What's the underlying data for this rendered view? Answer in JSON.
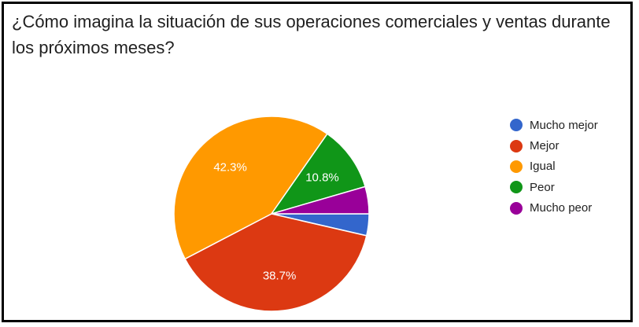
{
  "title": "¿Cómo imagina la situación de sus operaciones comerciales y ventas durante los próximos meses?",
  "chart_data": {
    "type": "pie",
    "title": "¿Cómo imagina la situación de sus operaciones comerciales y ventas durante los próximos meses?",
    "legend_position": "right",
    "slices": [
      {
        "label": "Mucho mejor",
        "value": 3.6,
        "value_label": "",
        "color": "#3366cc"
      },
      {
        "label": "Mejor",
        "value": 38.7,
        "value_label": "38.7%",
        "color": "#dc3912"
      },
      {
        "label": "Igual",
        "value": 42.3,
        "value_label": "42.3%",
        "color": "#ff9900"
      },
      {
        "label": "Peor",
        "value": 10.8,
        "value_label": "10.8%",
        "color": "#109618"
      },
      {
        "label": "Mucho peor",
        "value": 4.5,
        "value_label": "",
        "color": "#990099"
      }
    ]
  }
}
